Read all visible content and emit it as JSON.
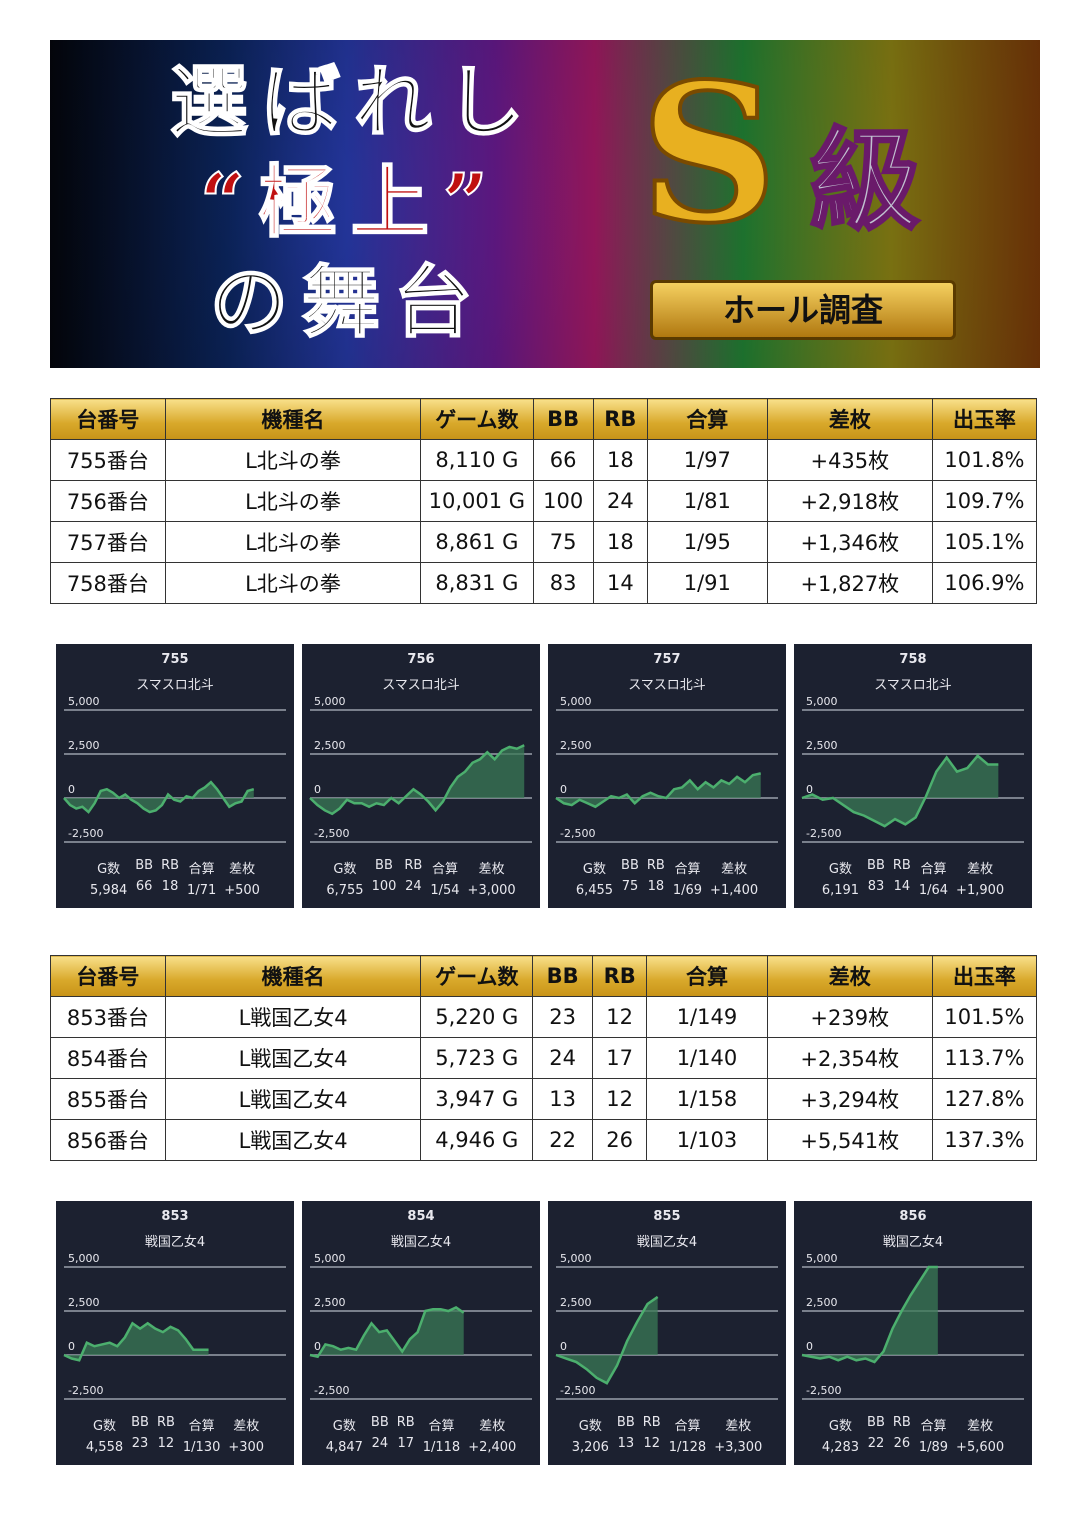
{
  "banner": {
    "line1": "選ばれし",
    "line2": "“極上”",
    "line3": "の舞台",
    "badge_s": "S",
    "badge_kyu": "級",
    "badge_ribbon": "ホール調査"
  },
  "headers": [
    "台番号",
    "機種名",
    "ゲーム数",
    "BB",
    "RB",
    "合算",
    "差枚",
    "出玉率"
  ],
  "table1": [
    [
      "755番台",
      "L北斗の拳",
      "8,110 G",
      "66",
      "18",
      "1/97",
      "+435枚",
      "101.8%"
    ],
    [
      "756番台",
      "L北斗の拳",
      "10,001 G",
      "100",
      "24",
      "1/81",
      "+2,918枚",
      "109.7%"
    ],
    [
      "757番台",
      "L北斗の拳",
      "8,861 G",
      "75",
      "18",
      "1/95",
      "+1,346枚",
      "105.1%"
    ],
    [
      "758番台",
      "L北斗の拳",
      "8,831 G",
      "83",
      "14",
      "1/91",
      "+1,827枚",
      "106.9%"
    ]
  ],
  "table2": [
    [
      "853番台",
      "L戦国乙女4",
      "5,220 G",
      "23",
      "12",
      "1/149",
      "+239枚",
      "101.5%"
    ],
    [
      "854番台",
      "L戦国乙女4",
      "5,723 G",
      "24",
      "17",
      "1/140",
      "+2,354枚",
      "113.7%"
    ],
    [
      "855番台",
      "L戦国乙女4",
      "3,947 G",
      "13",
      "12",
      "1/158",
      "+3,294枚",
      "127.8%"
    ],
    [
      "856番台",
      "L戦国乙女4",
      "4,946 G",
      "22",
      "26",
      "1/103",
      "+5,541枚",
      "137.3%"
    ]
  ],
  "colors": {
    "line": "#4caf6e",
    "fill": "#3a7a55",
    "card_bg": "#1c2130",
    "diff_text": "#1a1acc",
    "header_gold": "#d8a82a"
  },
  "chart_data": [
    {
      "type": "area",
      "machine": "755",
      "name": "スマスロ北斗",
      "yticks": [
        "5,000",
        "2,500",
        "0",
        "-2,500"
      ],
      "ylim": [
        -2500,
        5000
      ],
      "games": 5984,
      "values": [
        0,
        -400,
        -600,
        -500,
        -800,
        -300,
        400,
        500,
        300,
        0,
        200,
        -100,
        -300,
        -600,
        -800,
        -700,
        -400,
        200,
        -100,
        -200,
        100,
        0,
        400,
        600,
        900,
        500,
        0,
        -500,
        -300,
        -200,
        400,
        500
      ],
      "stats_labels": [
        "G数",
        "BB",
        "RB",
        "合算",
        "差枚"
      ],
      "stats": [
        "5,984",
        "66",
        "18",
        "1/71",
        "+500"
      ]
    },
    {
      "type": "area",
      "machine": "756",
      "name": "スマスロ北斗",
      "yticks": [
        "5,000",
        "2,500",
        "0",
        "-2,500"
      ],
      "ylim": [
        -2500,
        5000
      ],
      "games": 6755,
      "values": [
        0,
        -400,
        -700,
        -900,
        -600,
        -100,
        -300,
        -300,
        -500,
        -300,
        -400,
        0,
        -300,
        100,
        500,
        200,
        -200,
        -700,
        -200,
        600,
        1200,
        1500,
        2000,
        2200,
        2600,
        2200,
        2700,
        2900,
        2800,
        3000
      ],
      "stats_labels": [
        "G数",
        "BB",
        "RB",
        "合算",
        "差枚"
      ],
      "stats": [
        "6,755",
        "100",
        "24",
        "1/54",
        "+3,000"
      ]
    },
    {
      "type": "area",
      "machine": "757",
      "name": "スマスロ北斗",
      "yticks": [
        "5,000",
        "2,500",
        "0",
        "-2,500"
      ],
      "ylim": [
        -2500,
        5000
      ],
      "games": 6455,
      "values": [
        0,
        -300,
        -400,
        -100,
        -300,
        -500,
        -200,
        100,
        0,
        200,
        -300,
        100,
        300,
        100,
        0,
        500,
        600,
        1000,
        500,
        900,
        600,
        1000,
        800,
        1200,
        900,
        1300,
        1400
      ],
      "stats_labels": [
        "G数",
        "BB",
        "RB",
        "合算",
        "差枚"
      ],
      "stats": [
        "6,455",
        "75",
        "18",
        "1/69",
        "+1,400"
      ]
    },
    {
      "type": "area",
      "machine": "758",
      "name": "スマスロ北斗",
      "yticks": [
        "5,000",
        "2,500",
        "0",
        "-2,500"
      ],
      "ylim": [
        -2500,
        5000
      ],
      "games": 6191,
      "values": [
        0,
        200,
        -100,
        0,
        -400,
        -800,
        -1000,
        -1300,
        -1600,
        -1200,
        -1500,
        -1100,
        100,
        1500,
        2300,
        1500,
        1700,
        2400,
        1900,
        1900
      ],
      "stats_labels": [
        "G数",
        "BB",
        "RB",
        "合算",
        "差枚"
      ],
      "stats": [
        "6,191",
        "83",
        "14",
        "1/64",
        "+1,900"
      ]
    },
    {
      "type": "area",
      "machine": "853",
      "name": "戦国乙女4",
      "yticks": [
        "5,000",
        "2,500",
        "0",
        "-2,500"
      ],
      "ylim": [
        -2500,
        5000
      ],
      "games": 4558,
      "values": [
        0,
        -200,
        -300,
        700,
        500,
        600,
        700,
        500,
        1000,
        1800,
        1500,
        1800,
        1500,
        1300,
        1600,
        1400,
        900,
        300,
        300,
        300
      ],
      "stats_labels": [
        "G数",
        "BB",
        "RB",
        "合算",
        "差枚"
      ],
      "stats": [
        "4,558",
        "23",
        "12",
        "1/130",
        "+300"
      ]
    },
    {
      "type": "area",
      "machine": "854",
      "name": "戦国乙女4",
      "yticks": [
        "5,000",
        "2,500",
        "0",
        "-2,500"
      ],
      "ylim": [
        -2500,
        5000
      ],
      "games": 4847,
      "values": [
        0,
        -100,
        600,
        500,
        300,
        400,
        300,
        1100,
        1800,
        1300,
        1400,
        800,
        200,
        900,
        1300,
        2500,
        2600,
        2600,
        2500,
        2700,
        2400
      ],
      "stats_labels": [
        "G数",
        "BB",
        "RB",
        "合算",
        "差枚"
      ],
      "stats": [
        "4,847",
        "24",
        "17",
        "1/118",
        "+2,400"
      ]
    },
    {
      "type": "area",
      "machine": "855",
      "name": "戦国乙女4",
      "yticks": [
        "5,000",
        "2,500",
        "0",
        "-2,500"
      ],
      "ylim": [
        -2500,
        5000
      ],
      "games": 3206,
      "values": [
        0,
        -200,
        -400,
        -800,
        -1300,
        -1600,
        -600,
        800,
        1900,
        2900,
        3300
      ],
      "stats_labels": [
        "G数",
        "BB",
        "RB",
        "合算",
        "差枚"
      ],
      "stats": [
        "3,206",
        "13",
        "12",
        "1/128",
        "+3,300"
      ]
    },
    {
      "type": "area",
      "machine": "856",
      "name": "戦国乙女4",
      "yticks": [
        "5,000",
        "2,500",
        "0",
        "-2,500"
      ],
      "ylim": [
        -2500,
        5000
      ],
      "games": 4283,
      "values": [
        0,
        -100,
        -200,
        -100,
        -300,
        -100,
        -300,
        -200,
        -400,
        200,
        1500,
        2500,
        3400,
        4200,
        5000,
        5600
      ],
      "stats_labels": [
        "G数",
        "BB",
        "RB",
        "合算",
        "差枚"
      ],
      "stats": [
        "4,283",
        "22",
        "26",
        "1/89",
        "+5,600"
      ]
    }
  ]
}
